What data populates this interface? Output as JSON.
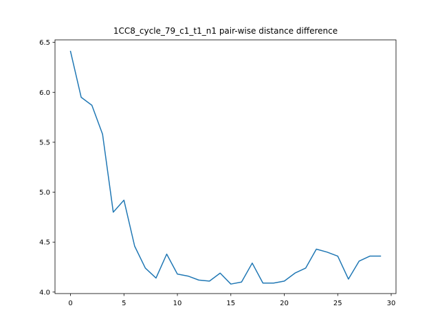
{
  "chart_data": {
    "type": "line",
    "title": "1CC8_cycle_79_c1_t1_n1 pair-wise distance difference",
    "xlabel": "",
    "ylabel": "",
    "xlim": [
      -1.45,
      30.45
    ],
    "ylim": [
      3.985,
      6.525
    ],
    "xticks": [
      0,
      5,
      10,
      15,
      20,
      25,
      30
    ],
    "yticks": [
      4.0,
      4.5,
      5.0,
      5.5,
      6.0,
      6.5
    ],
    "xtick_labels": [
      "0",
      "5",
      "10",
      "15",
      "20",
      "25",
      "30"
    ],
    "ytick_labels": [
      "4.0",
      "4.5",
      "5.0",
      "5.5",
      "6.0",
      "6.5"
    ],
    "grid": false,
    "series": [
      {
        "color": "#1f77b4",
        "x": [
          0,
          1,
          2,
          3,
          4,
          5,
          6,
          7,
          8,
          9,
          10,
          11,
          12,
          13,
          14,
          15,
          16,
          17,
          18,
          19,
          20,
          21,
          22,
          23,
          24,
          25,
          26,
          27,
          28,
          29
        ],
        "y": [
          6.41,
          5.95,
          5.87,
          5.58,
          4.8,
          4.92,
          4.46,
          4.24,
          4.14,
          4.38,
          4.18,
          4.16,
          4.12,
          4.11,
          4.19,
          4.08,
          4.1,
          4.29,
          4.09,
          4.09,
          4.11,
          4.19,
          4.24,
          4.43,
          4.4,
          4.36,
          4.13,
          4.31,
          4.36,
          4.36
        ]
      }
    ]
  }
}
